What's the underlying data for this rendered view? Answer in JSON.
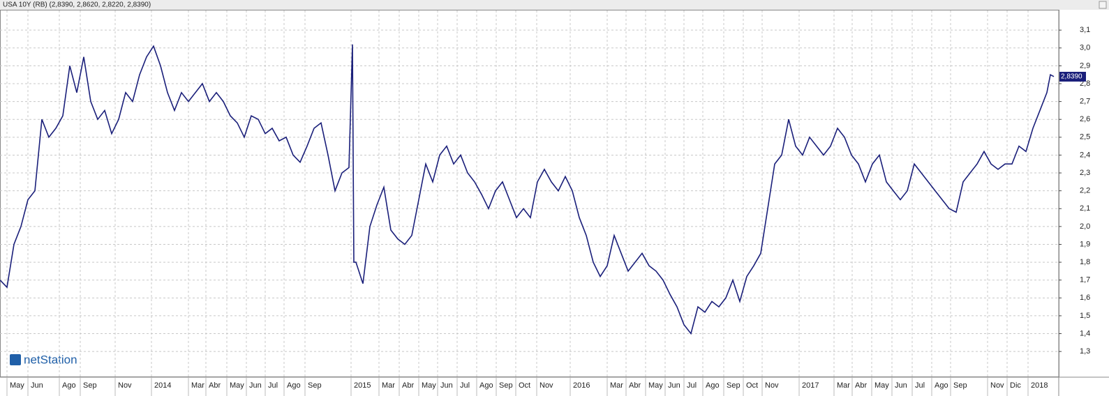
{
  "chart_data": {
    "type": "line",
    "title": "USA 10Y (RB) (2,8390, 2,8620, 2,8220, 2,8390)",
    "logo": "netStation",
    "series": [
      {
        "name": "USA 10Y",
        "color": "#1a1f7a",
        "x": [
          0,
          2,
          4,
          6,
          8,
          10,
          12,
          14,
          16,
          18,
          20,
          22,
          24,
          26,
          28,
          30,
          32,
          34,
          36,
          38,
          40,
          42,
          44,
          46,
          48,
          50,
          52,
          54,
          56,
          58,
          60,
          62,
          64,
          66,
          68,
          70,
          72,
          74,
          76,
          78,
          80,
          82,
          84,
          86,
          88,
          90,
          92,
          94,
          96,
          98,
          100,
          101,
          101.4,
          102,
          104,
          106,
          108,
          110,
          112,
          114,
          116,
          118,
          120,
          122,
          124,
          126,
          128,
          130,
          132,
          134,
          136,
          138,
          140,
          142,
          144,
          146,
          148,
          150,
          152,
          154,
          156,
          158,
          160,
          162,
          164,
          166,
          168,
          170,
          172,
          174,
          176,
          178,
          180,
          182,
          184,
          186,
          188,
          190,
          192,
          194,
          196,
          198,
          200,
          202,
          204,
          206,
          208,
          210,
          212,
          214,
          216,
          218,
          220,
          222,
          224,
          226,
          228,
          230,
          232,
          234,
          236,
          238,
          240,
          242,
          244,
          246,
          248,
          250,
          252,
          254,
          256,
          258,
          260,
          262,
          264,
          266,
          268,
          270,
          272,
          274,
          276,
          278,
          280,
          282,
          284,
          286,
          288,
          290,
          292,
          294,
          296,
          298,
          300,
          301,
          302
        ],
        "values": [
          1.7,
          1.66,
          1.9,
          2.0,
          2.15,
          2.2,
          2.6,
          2.5,
          2.55,
          2.62,
          2.9,
          2.75,
          2.95,
          2.7,
          2.6,
          2.65,
          2.52,
          2.6,
          2.75,
          2.7,
          2.85,
          2.95,
          3.01,
          2.9,
          2.75,
          2.65,
          2.75,
          2.7,
          2.75,
          2.8,
          2.7,
          2.75,
          2.7,
          2.62,
          2.58,
          2.5,
          2.62,
          2.6,
          2.52,
          2.55,
          2.48,
          2.5,
          2.4,
          2.36,
          2.45,
          2.55,
          2.58,
          2.4,
          2.2,
          2.3,
          2.33,
          3.02,
          1.8,
          1.8,
          1.68,
          2.0,
          2.12,
          2.22,
          1.98,
          1.93,
          1.9,
          1.95,
          2.15,
          2.35,
          2.25,
          2.4,
          2.45,
          2.35,
          2.4,
          2.3,
          2.25,
          2.18,
          2.1,
          2.2,
          2.25,
          2.15,
          2.05,
          2.1,
          2.05,
          2.25,
          2.32,
          2.25,
          2.2,
          2.28,
          2.2,
          2.05,
          1.95,
          1.8,
          1.72,
          1.78,
          1.95,
          1.85,
          1.75,
          1.8,
          1.85,
          1.78,
          1.75,
          1.7,
          1.62,
          1.55,
          1.45,
          1.4,
          1.55,
          1.52,
          1.58,
          1.55,
          1.6,
          1.7,
          1.58,
          1.72,
          1.78,
          1.85,
          2.1,
          2.35,
          2.4,
          2.6,
          2.45,
          2.4,
          2.5,
          2.45,
          2.4,
          2.45,
          2.55,
          2.5,
          2.4,
          2.35,
          2.25,
          2.35,
          2.4,
          2.25,
          2.2,
          2.15,
          2.2,
          2.35,
          2.3,
          2.25,
          2.2,
          2.15,
          2.1,
          2.08,
          2.25,
          2.3,
          2.35,
          2.42,
          2.35,
          2.32,
          2.35,
          2.35,
          2.45,
          2.42,
          2.55,
          2.65,
          2.75,
          2.85,
          2.84
        ]
      }
    ],
    "last_value": {
      "value": 2.839,
      "label": "2,8390"
    },
    "xlim": [
      0,
      303.4
    ],
    "ylim": [
      1.16,
      3.21
    ],
    "xticks": [
      {
        "value": 2,
        "label": "May"
      },
      {
        "value": 8,
        "label": "Jun"
      },
      {
        "value": 17,
        "label": "Ago"
      },
      {
        "value": 23,
        "label": "Sep"
      },
      {
        "value": 33,
        "label": "Nov"
      },
      {
        "value": 43.4,
        "label": "2014"
      },
      {
        "value": 54,
        "label": "Mar"
      },
      {
        "value": 59,
        "label": "Abr"
      },
      {
        "value": 65,
        "label": "May"
      },
      {
        "value": 70.6,
        "label": "Jun"
      },
      {
        "value": 76,
        "label": "Jul"
      },
      {
        "value": 81.4,
        "label": "Ago"
      },
      {
        "value": 87.4,
        "label": "Sep"
      },
      {
        "value": 100.6,
        "label": "2015"
      },
      {
        "value": 108.6,
        "label": "Mar"
      },
      {
        "value": 114.4,
        "label": "Abr"
      },
      {
        "value": 120,
        "label": "May"
      },
      {
        "value": 125.4,
        "label": "Jun"
      },
      {
        "value": 131,
        "label": "Jul"
      },
      {
        "value": 136.6,
        "label": "Ago"
      },
      {
        "value": 142.2,
        "label": "Sep"
      },
      {
        "value": 147.8,
        "label": "Oct"
      },
      {
        "value": 153.8,
        "label": "Nov"
      },
      {
        "value": 163.4,
        "label": "2016"
      },
      {
        "value": 174,
        "label": "Mar"
      },
      {
        "value": 179.4,
        "label": "Abr"
      },
      {
        "value": 185,
        "label": "May"
      },
      {
        "value": 190.6,
        "label": "Jun"
      },
      {
        "value": 196,
        "label": "Jul"
      },
      {
        "value": 201.4,
        "label": "Ago"
      },
      {
        "value": 207.4,
        "label": "Sep"
      },
      {
        "value": 213,
        "label": "Oct"
      },
      {
        "value": 218.4,
        "label": "Nov"
      },
      {
        "value": 229,
        "label": "2017"
      },
      {
        "value": 239,
        "label": "Mar"
      },
      {
        "value": 244.2,
        "label": "Abr"
      },
      {
        "value": 249.8,
        "label": "May"
      },
      {
        "value": 255.6,
        "label": "Jun"
      },
      {
        "value": 261.4,
        "label": "Jul"
      },
      {
        "value": 267,
        "label": "Ago"
      },
      {
        "value": 272.4,
        "label": "Sep"
      },
      {
        "value": 283,
        "label": "Nov"
      },
      {
        "value": 288.6,
        "label": "Dic"
      },
      {
        "value": 294.6,
        "label": "2018"
      }
    ],
    "yticks": [
      {
        "value": 1.3,
        "label": "1,3"
      },
      {
        "value": 1.4,
        "label": "1,4"
      },
      {
        "value": 1.5,
        "label": "1,5"
      },
      {
        "value": 1.6,
        "label": "1,6"
      },
      {
        "value": 1.7,
        "label": "1,7"
      },
      {
        "value": 1.8,
        "label": "1,8"
      },
      {
        "value": 1.9,
        "label": "1,9"
      },
      {
        "value": 2.0,
        "label": "2,0"
      },
      {
        "value": 2.1,
        "label": "2,1"
      },
      {
        "value": 2.2,
        "label": "2,2"
      },
      {
        "value": 2.3,
        "label": "2,3"
      },
      {
        "value": 2.4,
        "label": "2,4"
      },
      {
        "value": 2.5,
        "label": "2,5"
      },
      {
        "value": 2.6,
        "label": "2,6"
      },
      {
        "value": 2.7,
        "label": "2,7"
      },
      {
        "value": 2.8,
        "label": "2,8"
      },
      {
        "value": 2.9,
        "label": "2,9"
      },
      {
        "value": 3.0,
        "label": "3,0"
      },
      {
        "value": 3.1,
        "label": "3,1"
      }
    ],
    "grid": true
  }
}
